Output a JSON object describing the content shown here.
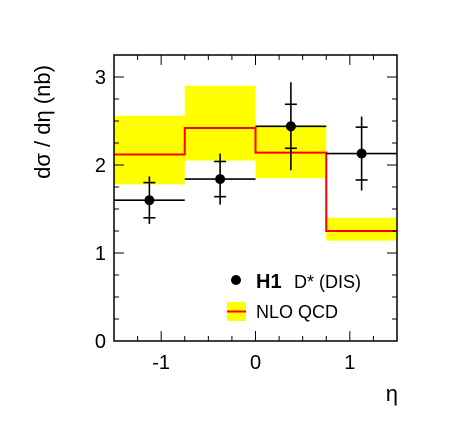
{
  "chart_data": {
    "type": "line",
    "title": "",
    "xlabel": "η",
    "ylabel": "dσ / dη  (nb)",
    "xlim": [
      -1.5,
      1.5
    ],
    "ylim": [
      0,
      3.25
    ],
    "x_ticks": [
      "-1",
      "0",
      "1"
    ],
    "x_tick_values": [
      -1,
      0,
      1
    ],
    "y_ticks": [
      "0",
      "1",
      "2",
      "3"
    ],
    "y_tick_values": [
      0,
      1,
      2,
      3
    ],
    "grid": false,
    "legend_position": "bottom-right",
    "colors": {
      "band": "#ffff00",
      "line": "#ff0000",
      "markers": "#000000"
    },
    "series": [
      {
        "name": "H1 D* (DIS)",
        "legend_bold": "H1",
        "legend_rest": "D* (DIS)",
        "kind": "data-points",
        "bins": [
          [
            -1.5,
            -0.75
          ],
          [
            -0.75,
            0
          ],
          [
            0,
            0.75
          ],
          [
            0.75,
            1.5
          ]
        ],
        "x": [
          -1.125,
          -0.375,
          0.375,
          1.125
        ],
        "values": [
          1.6,
          1.84,
          2.44,
          2.13
        ],
        "stat_err": [
          0.2,
          0.2,
          0.25,
          0.3
        ],
        "total_err": [
          0.27,
          0.29,
          0.5,
          0.42
        ]
      },
      {
        "name": "NLO QCD",
        "kind": "histogram-band",
        "bins": [
          [
            -1.5,
            -0.75
          ],
          [
            -0.75,
            0
          ],
          [
            0,
            0.75
          ],
          [
            0.75,
            1.5
          ]
        ],
        "values": [
          2.12,
          2.42,
          2.14,
          1.25
        ],
        "band_low": [
          1.78,
          2.05,
          1.85,
          1.14
        ],
        "band_high": [
          2.56,
          2.9,
          2.44,
          1.4
        ]
      }
    ]
  }
}
